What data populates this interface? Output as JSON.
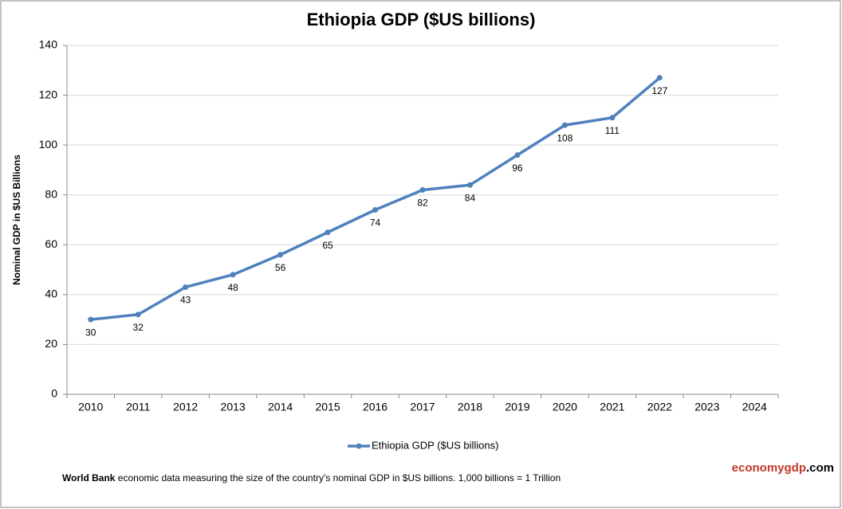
{
  "chart_data": {
    "type": "line",
    "title": "Ethiopia GDP ($US billions)",
    "y_label": "Nominal GDP in $US  Billions",
    "categories": [
      "2010",
      "2011",
      "2012",
      "2013",
      "2014",
      "2015",
      "2016",
      "2017",
      "2018",
      "2019",
      "2020",
      "2021",
      "2022",
      "2023",
      "2024"
    ],
    "series": [
      {
        "name": "Ethiopia GDP ($US billions)",
        "color": "#4f81bd",
        "values": [
          30,
          32,
          43,
          48,
          56,
          65,
          74,
          82,
          84,
          96,
          108,
          111,
          127,
          null,
          null
        ]
      }
    ],
    "ylim": [
      0,
      140
    ],
    "yticks": [
      0,
      20,
      40,
      60,
      80,
      100,
      120,
      140
    ],
    "grid": true,
    "legend": "bottom",
    "footnote_source": "World Bank",
    "footnote": "economic data  measuring the size of the country's nominal GDP in $US billions. 1,000 billions = 1 Trillion",
    "brand_name": "economygdp",
    "brand_suffix": ".com"
  }
}
